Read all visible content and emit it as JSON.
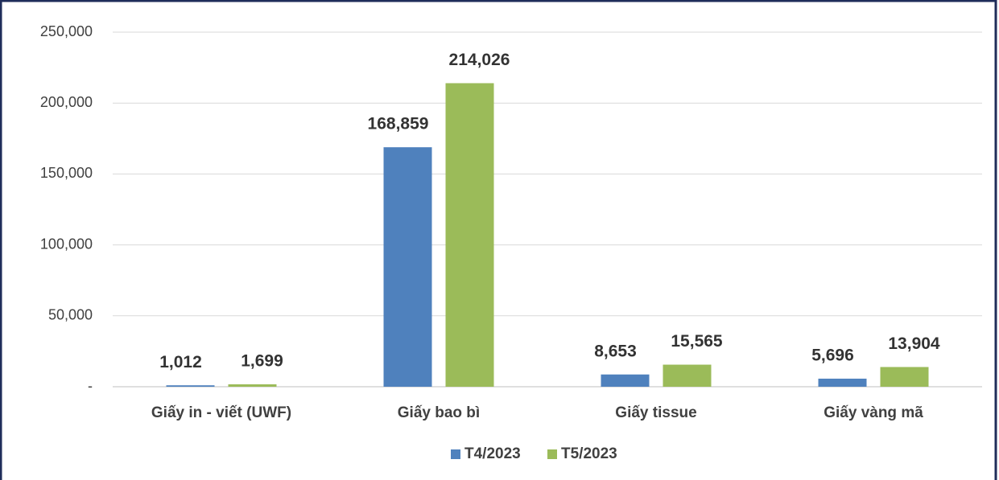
{
  "chart_data": {
    "type": "bar",
    "categories": [
      "Giấy in - viết (UWF)",
      "Giấy bao bì",
      "Giấy tissue",
      "Giấy vàng mã"
    ],
    "series": [
      {
        "name": "T4/2023",
        "color": "#4f81bd",
        "values": [
          1012,
          168859,
          8653,
          5696
        ],
        "value_labels": [
          "1,012",
          "168,859",
          "8,653",
          "5,696"
        ]
      },
      {
        "name": "T5/2023",
        "color": "#9bbb59",
        "values": [
          1699,
          214026,
          15565,
          13904
        ],
        "value_labels": [
          "1,699",
          "214,026",
          "15,565",
          "13,904"
        ]
      }
    ],
    "ylim": [
      0,
      250000
    ],
    "yticks": [
      {
        "value": 0,
        "label": "-"
      },
      {
        "value": 50000,
        "label": "50,000"
      },
      {
        "value": 100000,
        "label": "100,000"
      },
      {
        "value": 150000,
        "label": "150,000"
      },
      {
        "value": 200000,
        "label": "200,000"
      },
      {
        "value": 250000,
        "label": "250,000"
      }
    ],
    "grid": true,
    "legend": "bottom"
  }
}
